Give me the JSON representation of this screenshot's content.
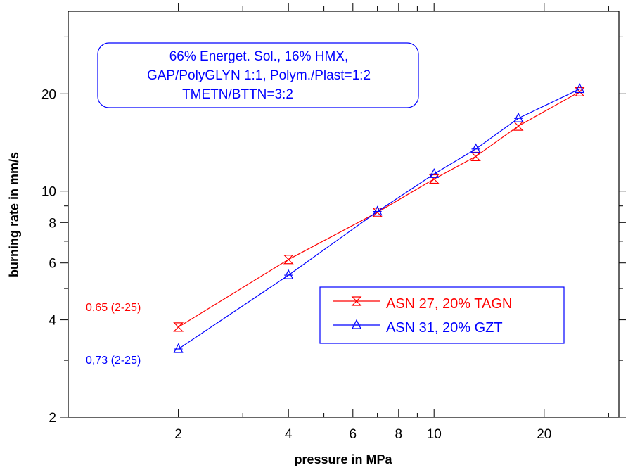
{
  "chart_data": {
    "type": "line",
    "title": "",
    "xlabel": "pressure in MPa",
    "ylabel": "burning rate in mm/s",
    "xscale": "log",
    "yscale": "log",
    "xlim": [
      1.0,
      32
    ],
    "ylim": [
      2,
      36
    ],
    "x_ticks": [
      2,
      4,
      6,
      8,
      10,
      20
    ],
    "y_ticks": [
      2,
      4,
      6,
      8,
      10,
      20
    ],
    "grid": false,
    "legend_position": "lower-right",
    "info_box": [
      "66% Energet. Sol., 16% HMX,",
      "GAP/PolyGLYN 1:1, Polym./Plast=1:2",
      "TMETN/BTTN=3:2"
    ],
    "series": [
      {
        "name": "ASN 27, 20% TAGN",
        "color": "#ff0000",
        "marker": "hourglass-x",
        "x": [
          2,
          4,
          7,
          10,
          13,
          17,
          25
        ],
        "y": [
          3.8,
          6.15,
          8.6,
          10.9,
          12.8,
          15.9,
          20.3
        ],
        "exponent_label": "0,65 (2-25)"
      },
      {
        "name": "ASN 31, 20% GZT",
        "color": "#0000ff",
        "marker": "triangle",
        "x": [
          2,
          4,
          7,
          10,
          13,
          17,
          25
        ],
        "y": [
          3.25,
          5.5,
          8.65,
          11.3,
          13.5,
          16.8,
          20.7
        ],
        "exponent_label": "0,73 (2-25)"
      }
    ]
  }
}
